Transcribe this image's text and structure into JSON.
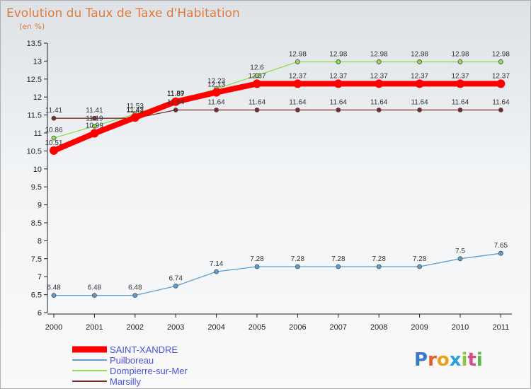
{
  "chart_data": {
    "type": "line",
    "title": "Evolution du Taux de Taxe d'Habitation",
    "subtitle": "(en %)",
    "x": [
      "2000",
      "2001",
      "2002",
      "2003",
      "2004",
      "2005",
      "2006",
      "2007",
      "2008",
      "2009",
      "2010",
      "2011"
    ],
    "ylim": [
      6,
      13.5
    ],
    "yticks": [
      "6",
      "6.5",
      "7",
      "7.5",
      "8",
      "8.5",
      "9",
      "9.5",
      "10",
      "10.5",
      "11",
      "11.5",
      "12",
      "12.5",
      "13",
      "13.5"
    ],
    "grid": false,
    "legend_position": "bottom-left",
    "series": [
      {
        "name": "SAINT-XANDRE",
        "color": "#ff0000",
        "values": [
          10.51,
          10.99,
          11.43,
          11.87,
          12.13,
          12.37,
          12.37,
          12.37,
          12.37,
          12.37,
          12.37,
          12.37
        ],
        "labels": [
          "10.51",
          "10.99",
          "11.43",
          "11.87",
          "12.13",
          "12.37",
          "12.37",
          "12.37",
          "12.37",
          "12.37",
          "12.37",
          "12.37"
        ]
      },
      {
        "name": "Puilboreau",
        "color": "#5f9fd0",
        "values": [
          6.48,
          6.48,
          6.48,
          6.74,
          7.14,
          7.28,
          7.28,
          7.28,
          7.28,
          7.28,
          7.5,
          7.65
        ],
        "labels": [
          "6.48",
          "6.48",
          "6.48",
          "6.74",
          "7.14",
          "7.28",
          "7.28",
          "7.28",
          "7.28",
          "7.28",
          "7.5",
          "7.65"
        ]
      },
      {
        "name": "Dompierre-sur-Mer",
        "color": "#8fdc55",
        "values": [
          10.86,
          11.19,
          11.53,
          11.89,
          12.23,
          12.6,
          12.98,
          12.98,
          12.98,
          12.98,
          12.98,
          12.98
        ],
        "labels": [
          "10.86",
          "11.19",
          "11.53",
          "11.89",
          "12.23",
          "12.6",
          "12.98",
          "12.98",
          "12.98",
          "12.98",
          "12.98",
          "12.98"
        ]
      },
      {
        "name": "Marsilly",
        "color": "#7a2a2a",
        "values": [
          11.41,
          11.41,
          11.41,
          11.64,
          11.64,
          11.64,
          11.64,
          11.64,
          11.64,
          11.64,
          11.64,
          11.64
        ],
        "labels": [
          "11.41",
          "11.41",
          "11.41",
          "11.64",
          "11.64",
          "11.64",
          "11.64",
          "11.64",
          "11.64",
          "11.64",
          "11.64",
          "11.64"
        ]
      }
    ]
  },
  "watermark": "Proxiti"
}
